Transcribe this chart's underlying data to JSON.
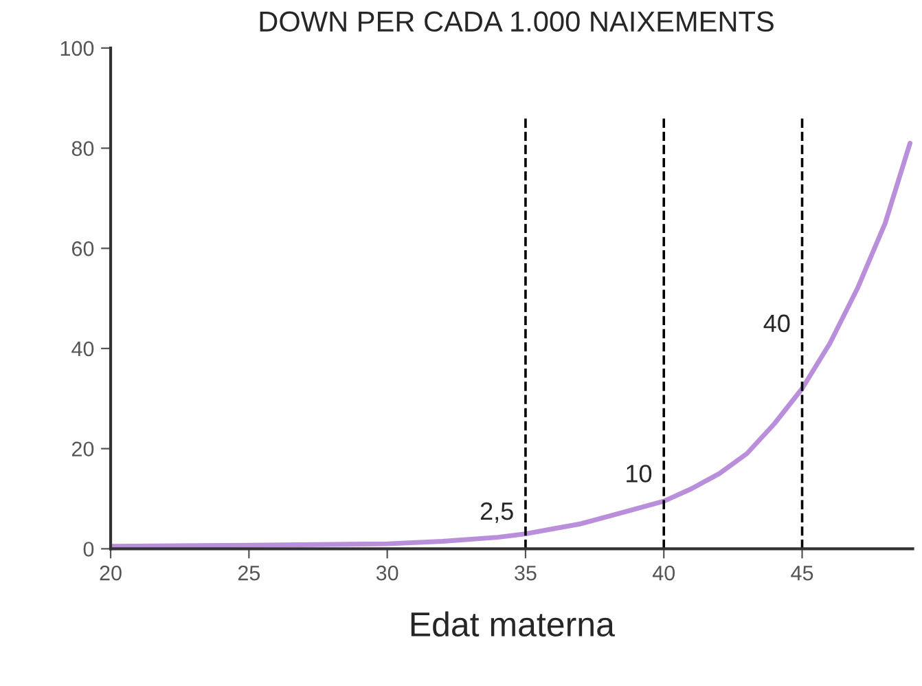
{
  "chart_data": {
    "type": "line",
    "title": "DOWN PER CADA 1.000 NAIXEMENTS",
    "xlabel": "Edat materna",
    "x": [
      20,
      25,
      30,
      32,
      34,
      35,
      36,
      37,
      38,
      39,
      40,
      41,
      42,
      43,
      44,
      45,
      46,
      47,
      48,
      48.9
    ],
    "series": [
      {
        "color": "#b98fdc",
        "values": [
          0.5,
          0.7,
          1.0,
          1.5,
          2.3,
          3,
          4,
          5,
          6.5,
          8,
          9.5,
          12,
          15,
          19,
          25,
          32,
          41,
          52,
          65,
          81
        ]
      }
    ],
    "xlim": [
      20,
      49
    ],
    "ylim": [
      0,
      100
    ],
    "xticks": [
      20,
      25,
      30,
      35,
      40,
      45
    ],
    "yticks": [
      0,
      20,
      40,
      60,
      80,
      100
    ],
    "ref_lines": [
      {
        "axis": "x",
        "value": 35,
        "color": "#000000",
        "line_style": "dashed"
      },
      {
        "axis": "x",
        "value": 40,
        "color": "#000000",
        "line_style": "dashed"
      },
      {
        "axis": "x",
        "value": 45,
        "color": "#000000",
        "line_style": "dashed"
      }
    ],
    "annotations": [
      {
        "text": "2,5",
        "x": 35,
        "y": 2.5
      },
      {
        "text": "10",
        "x": 40,
        "y": 10
      },
      {
        "text": "40",
        "x": 45,
        "y": 40
      }
    ],
    "grid": false,
    "legend": false,
    "marker": "none",
    "line_style": "solid"
  }
}
